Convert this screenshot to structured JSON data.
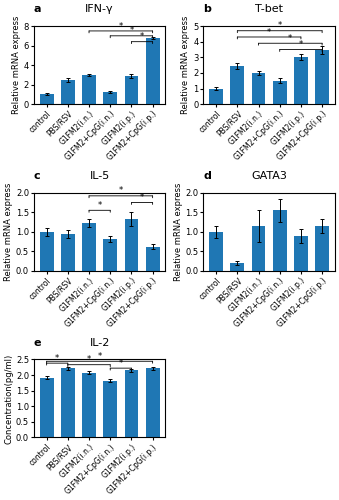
{
  "chart_data": [
    {
      "type": "bar",
      "title": "IFN-γ",
      "panel_label": "a",
      "ylabel": "Relative mRNA express",
      "categories": [
        "control",
        "PBS/RSV",
        "G1FM2(i.n.)",
        "G1FM2+CpG(i.n.)",
        "G1FM2(i.p.)",
        "G1FM2+CpG(i.p.)"
      ],
      "values": [
        1.0,
        2.45,
        3.0,
        1.2,
        2.9,
        6.8
      ],
      "errors": [
        0.1,
        0.18,
        0.12,
        0.1,
        0.2,
        0.12
      ],
      "ylim": [
        0,
        8
      ],
      "yticks": [
        0,
        2,
        4,
        6,
        8
      ],
      "significance": [
        {
          "from": "G1FM2(i.n.)",
          "to": "G1FM2+CpG(i.p.)",
          "y": 7.5,
          "text": "*"
        },
        {
          "from": "G1FM2+CpG(i.n.)",
          "to": "G1FM2+CpG(i.p.)",
          "y": 7.0,
          "text": "*"
        },
        {
          "from": "G1FM2(i.p.)",
          "to": "G1FM2+CpG(i.p.)",
          "y": 6.4,
          "text": "*"
        }
      ]
    },
    {
      "type": "bar",
      "title": "T-bet",
      "panel_label": "b",
      "ylabel": "Relative mRNA express",
      "categories": [
        "control",
        "PBS/RSV",
        "G1FM2(i.n.)",
        "G1FM2+CpG(i.n.)",
        "G1FM2(i.p.)",
        "G1FM2+CpG(i.p.)"
      ],
      "values": [
        1.0,
        2.45,
        2.0,
        1.5,
        3.0,
        3.45
      ],
      "errors": [
        0.1,
        0.18,
        0.15,
        0.15,
        0.18,
        0.25
      ],
      "ylim": [
        0,
        5
      ],
      "yticks": [
        0,
        1,
        2,
        3,
        4,
        5
      ],
      "significance": [
        {
          "from": "PBS/RSV",
          "to": "G1FM2+CpG(i.p.)",
          "y": 4.7,
          "text": "*"
        },
        {
          "from": "PBS/RSV",
          "to": "G1FM2(i.p.)",
          "y": 4.3,
          "text": "*"
        },
        {
          "from": "G1FM2(i.n.)",
          "to": "G1FM2+CpG(i.p.)",
          "y": 3.9,
          "text": "*"
        },
        {
          "from": "G1FM2+CpG(i.n.)",
          "to": "G1FM2+CpG(i.p.)",
          "y": 3.5,
          "text": "*"
        }
      ]
    },
    {
      "type": "bar",
      "title": "IL-5",
      "panel_label": "c",
      "ylabel": "Relative mRNA express",
      "categories": [
        "control",
        "PBS/RSV",
        "G1FM2(i.n.)",
        "G1FM2+CpG(i.n.)",
        "G1FM2(i.p.)",
        "G1FM2+CpG(i.p.)"
      ],
      "values": [
        1.0,
        0.95,
        1.22,
        0.82,
        1.32,
        0.62
      ],
      "errors": [
        0.1,
        0.1,
        0.1,
        0.07,
        0.18,
        0.06
      ],
      "ylim": [
        0,
        2.0
      ],
      "yticks": [
        0.0,
        0.5,
        1.0,
        1.5,
        2.0
      ],
      "significance": [
        {
          "from": "G1FM2(i.n.)",
          "to": "G1FM2+CpG(i.n.)",
          "y": 1.55,
          "text": "*"
        },
        {
          "from": "G1FM2(i.p.)",
          "to": "G1FM2+CpG(i.p.)",
          "y": 1.75,
          "text": "*"
        },
        {
          "from": "G1FM2(i.n.)",
          "to": "G1FM2+CpG(i.p.)",
          "y": 1.92,
          "text": "*"
        }
      ]
    },
    {
      "type": "bar",
      "title": "GATA3",
      "panel_label": "d",
      "ylabel": "Relative mRNA express",
      "categories": [
        "control",
        "PBS/RSV",
        "G1FM2(i.n.)",
        "G1FM2+CpG(i.n.)",
        "G1FM2(i.p.)",
        "G1FM2+CpG(i.p.)"
      ],
      "values": [
        1.0,
        0.2,
        1.15,
        1.55,
        0.9,
        1.15
      ],
      "errors": [
        0.15,
        0.04,
        0.4,
        0.3,
        0.18,
        0.18
      ],
      "ylim": [
        0,
        2.0
      ],
      "yticks": [
        0.0,
        0.5,
        1.0,
        1.5,
        2.0
      ],
      "significance": []
    },
    {
      "type": "bar",
      "title": "IL-2",
      "panel_label": "e",
      "ylabel": "Concentration(pg/ml)",
      "categories": [
        "control",
        "PBS/RSV",
        "G1FM2(i.n.)",
        "G1FM2+CpG(i.n.)",
        "G1FM2(i.p.)",
        "G1FM2+CpG(i.p.)"
      ],
      "values": [
        1.92,
        2.22,
        2.08,
        1.82,
        2.15,
        2.22
      ],
      "errors": [
        0.06,
        0.05,
        0.05,
        0.04,
        0.04,
        0.05
      ],
      "ylim": [
        0,
        2.5
      ],
      "yticks": [
        0.0,
        0.5,
        1.0,
        1.5,
        2.0,
        2.5
      ],
      "significance": [
        {
          "from": "control",
          "to": "PBS/RSV",
          "y": 2.38,
          "text": "*"
        },
        {
          "from": "PBS/RSV",
          "to": "G1FM2+CpG(i.n.)",
          "y": 2.33,
          "text": "*"
        },
        {
          "from": "G1FM2+CpG(i.n.)",
          "to": "G1FM2(i.p.)",
          "y": 2.22,
          "text": "*"
        },
        {
          "from": "control",
          "to": "G1FM2+CpG(i.p.)",
          "y": 2.44,
          "text": "*"
        }
      ]
    }
  ]
}
